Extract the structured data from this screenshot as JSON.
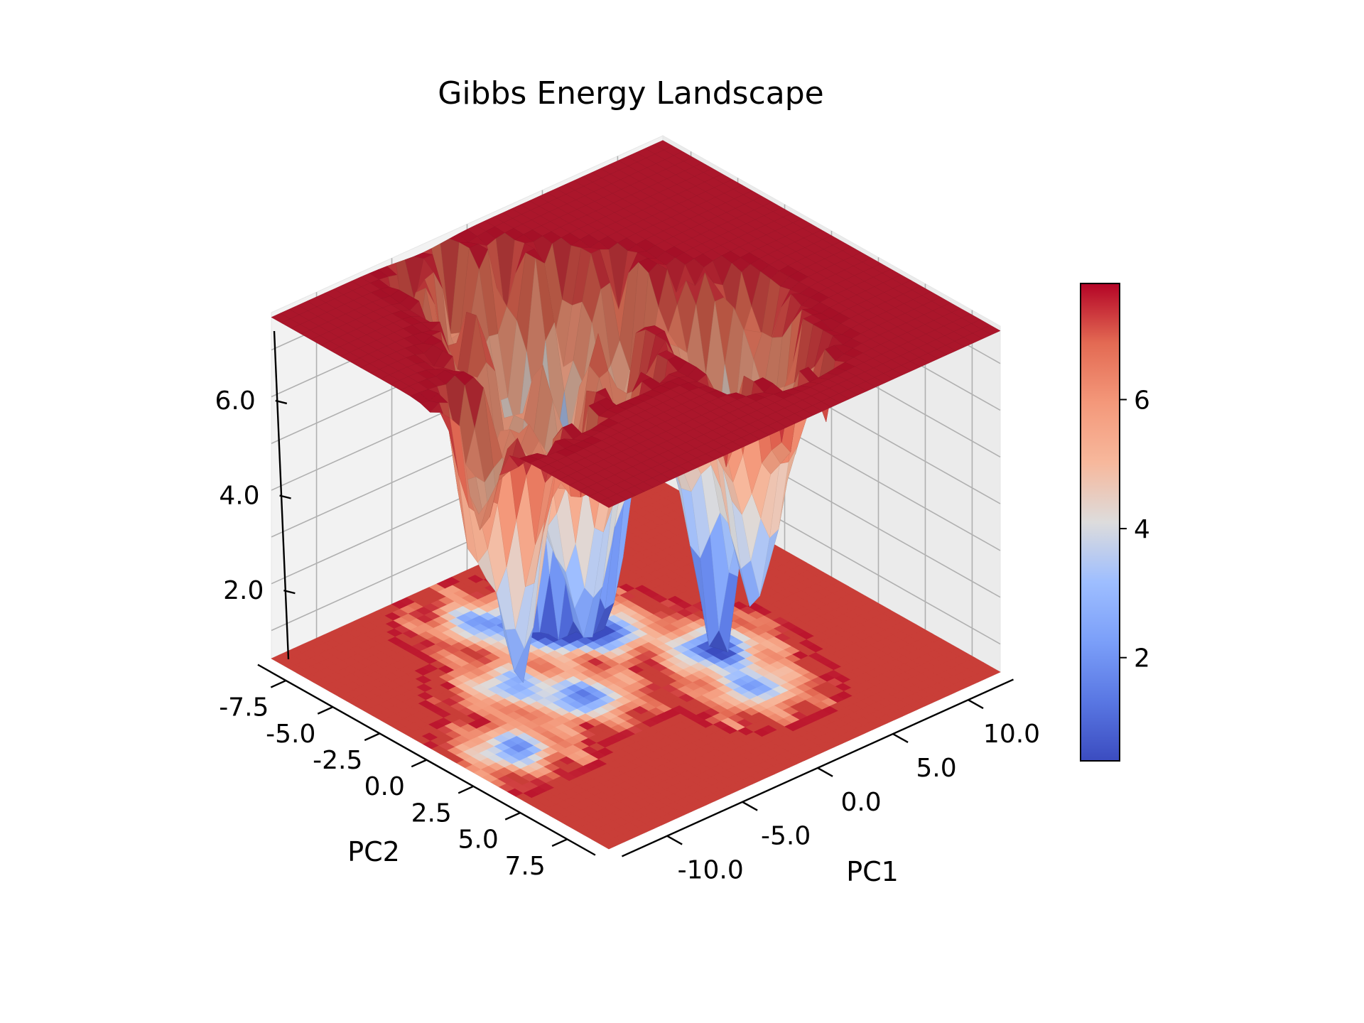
{
  "chart_data": {
    "type": "surface",
    "title": "Gibbs Energy Landscape",
    "xlabel": "PC1",
    "ylabel": "PC2",
    "zlabel": "",
    "colormap": "coolwarm",
    "xlim": [
      -13,
      13
    ],
    "ylim": [
      -9,
      9
    ],
    "zlim": [
      0.4,
      7.8
    ],
    "x_ticks": [
      "-10.0",
      "-5.0",
      "0.0",
      "5.0",
      "10.0"
    ],
    "y_ticks": [
      "-7.5",
      "-5.0",
      "-2.5",
      "0.0",
      "2.5",
      "5.0",
      "7.5"
    ],
    "z_ticks": [
      "2.0",
      "4.0",
      "6.0"
    ],
    "colorbar": {
      "range": [
        0.4,
        7.8
      ],
      "ticks": [
        "2",
        "4",
        "6"
      ]
    },
    "plateau_value": 7.7,
    "minima": [
      {
        "pc1": 4.0,
        "pc2": 1.0,
        "g": 0.4
      },
      {
        "pc1": -1.0,
        "pc2": -4.0,
        "g": 0.6
      },
      {
        "pc1": 1.0,
        "pc2": -2.5,
        "g": 1.2
      },
      {
        "pc1": -4.0,
        "pc2": 0.5,
        "g": 1.8
      },
      {
        "pc1": -10.0,
        "pc2": 1.5,
        "g": 2.1
      },
      {
        "pc1": -3.0,
        "pc2": -6.0,
        "g": 2.8
      },
      {
        "pc1": 3.0,
        "pc2": 4.0,
        "g": 2.6
      },
      {
        "pc1": -6.0,
        "pc2": -2.0,
        "g": 2.9
      }
    ],
    "grid": true
  }
}
